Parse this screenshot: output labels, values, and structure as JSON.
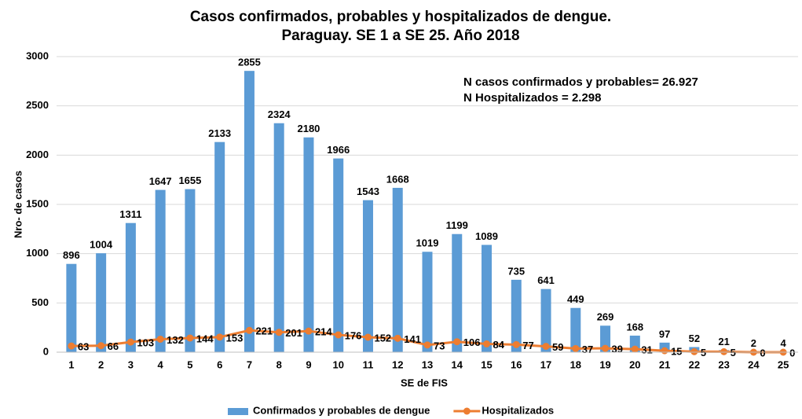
{
  "chart_data": {
    "type": "bar",
    "title": "Casos confirmados, probables  y hospitalizados de dengue.",
    "subtitle": "Paraguay. SE 1 a SE 25. Año 2018",
    "x_label": "SE de FIS",
    "y_label": "Nro- de casos",
    "annotations": [
      "N casos confirmados y probables= 26.927",
      "N Hospitalizados = 2.298"
    ],
    "categories": [
      "1",
      "2",
      "3",
      "4",
      "5",
      "6",
      "7",
      "8",
      "9",
      "10",
      "11",
      "12",
      "13",
      "14",
      "15",
      "16",
      "17",
      "18",
      "19",
      "20",
      "21",
      "22",
      "23",
      "24",
      "25"
    ],
    "series": [
      {
        "name": "Confirmados y probables de dengue",
        "type": "bar",
        "color": "#5b9bd5",
        "values": [
          896,
          1004,
          1311,
          1647,
          1655,
          2133,
          2855,
          2324,
          2180,
          1966,
          1543,
          1668,
          1019,
          1199,
          1089,
          735,
          641,
          449,
          269,
          168,
          97,
          52,
          21,
          2,
          4
        ]
      },
      {
        "name": "Hospitalizados",
        "type": "line",
        "color": "#ed7d31",
        "values": [
          63,
          66,
          103,
          132,
          144,
          153,
          221,
          201,
          214,
          176,
          152,
          141,
          73,
          106,
          84,
          77,
          59,
          37,
          39,
          31,
          15,
          5,
          5,
          0,
          0
        ]
      }
    ],
    "ylim": [
      0,
      3000
    ],
    "yticks": [
      0,
      500,
      1000,
      1500,
      2000,
      2500,
      3000
    ],
    "grid": true,
    "legend": "bottom"
  }
}
